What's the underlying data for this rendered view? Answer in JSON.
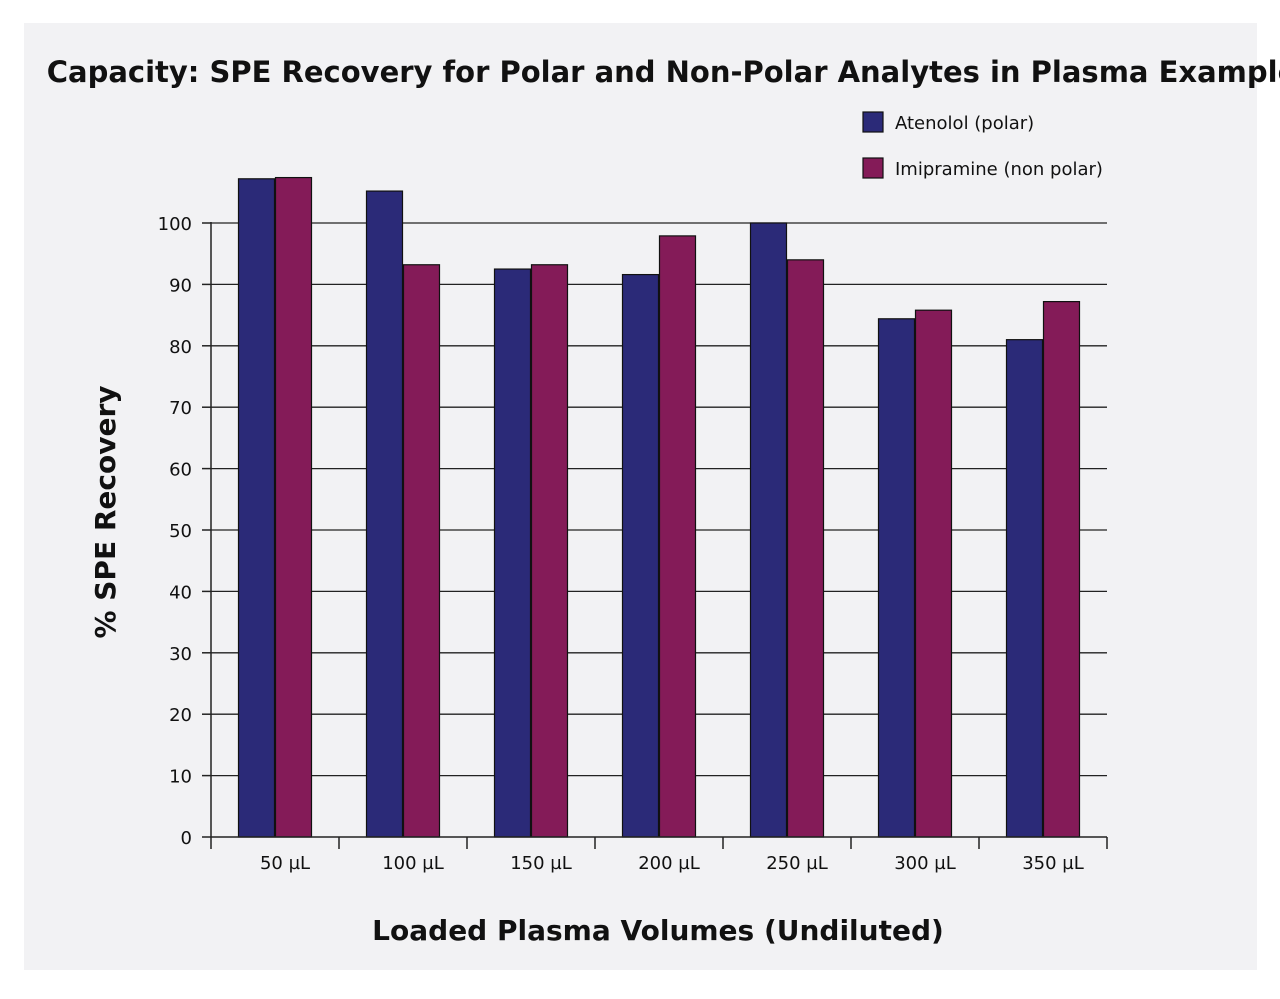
{
  "chart_data": {
    "type": "bar",
    "title": "Capacity: SPE Recovery for Polar and Non-Polar Analytes in Plasma Example",
    "xlabel": "Loaded Plasma Volumes (Undiluted)",
    "ylabel": "% SPE Recovery",
    "ylim": [
      0,
      110
    ],
    "yticks": [
      0,
      10,
      20,
      30,
      40,
      50,
      60,
      70,
      80,
      90,
      100
    ],
    "grid": true,
    "legend_position": "top-right",
    "categories": [
      "50 µL",
      "100 µL",
      "150 µL",
      "200 µL",
      "250 µL",
      "300 µL",
      "350 µL"
    ],
    "series": [
      {
        "name": "Atenolol (polar)",
        "color": "#2b2a78",
        "values": [
          107.2,
          105.2,
          92.5,
          91.6,
          100.0,
          84.4,
          81.0
        ]
      },
      {
        "name": "Imipramine (non polar)",
        "color": "#841b58",
        "values": [
          107.4,
          93.2,
          93.2,
          97.9,
          94.0,
          85.8,
          87.2
        ]
      }
    ]
  }
}
